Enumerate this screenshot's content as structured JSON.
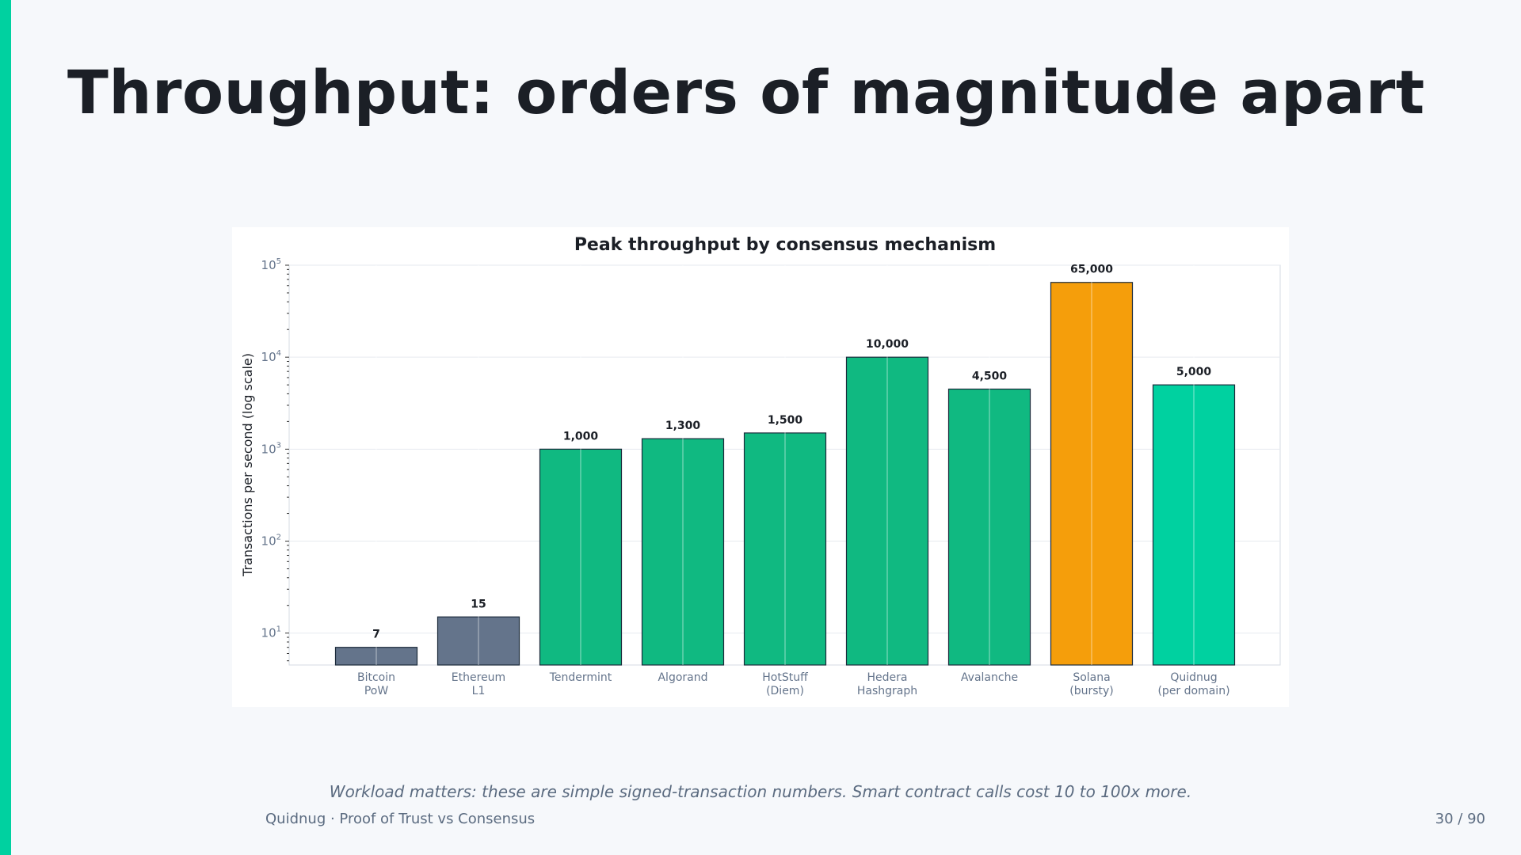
{
  "slide": {
    "title": "Throughput: orders of magnitude apart",
    "caption": "Workload matters: these are simple signed-transaction numbers. Smart contract calls cost 10 to 100x more.",
    "footer_left": "Quidnug  ·  Proof of Trust vs Consensus",
    "page_number": "30 / 90",
    "accent_color": "#00d1a0"
  },
  "chart_data": {
    "type": "bar",
    "title": "Peak throughput by consensus mechanism",
    "ylabel": "Transactions per second (log scale)",
    "xlabel": "",
    "y_scale": "log",
    "ylim": [
      4.5,
      100000
    ],
    "y_ticks": [
      {
        "base": "10",
        "exp": "1",
        "value": 10
      },
      {
        "base": "10",
        "exp": "2",
        "value": 100
      },
      {
        "base": "10",
        "exp": "3",
        "value": 1000
      },
      {
        "base": "10",
        "exp": "4",
        "value": 10000
      },
      {
        "base": "10",
        "exp": "5",
        "value": 100000
      }
    ],
    "grid": true,
    "categories": [
      [
        "Bitcoin",
        "PoW"
      ],
      [
        "Ethereum",
        "L1"
      ],
      [
        "Tendermint"
      ],
      [
        "Algorand"
      ],
      [
        "HotStuff",
        "(Diem)"
      ],
      [
        "Hedera",
        "Hashgraph"
      ],
      [
        "Avalanche"
      ],
      [
        "Solana",
        "(bursty)"
      ],
      [
        "Quidnug",
        "(per domain)"
      ]
    ],
    "values": [
      7,
      15,
      1000,
      1300,
      1500,
      10000,
      4500,
      65000,
      5000
    ],
    "value_labels": [
      "7",
      "15",
      "1,000",
      "1,300",
      "1,500",
      "10,000",
      "4,500",
      "65,000",
      "5,000"
    ],
    "colors": [
      "#64748b",
      "#64748b",
      "#10b981",
      "#10b981",
      "#10b981",
      "#10b981",
      "#10b981",
      "#f59e0b",
      "#00d1a0"
    ]
  }
}
